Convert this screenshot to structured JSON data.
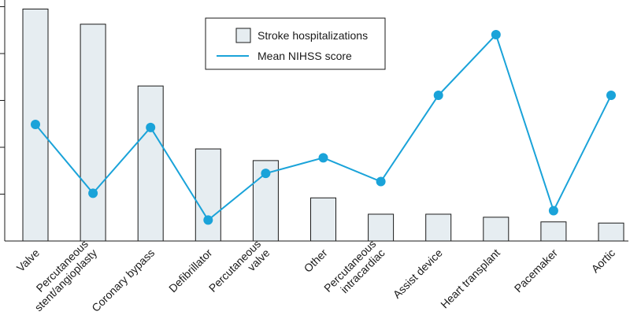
{
  "chart_data": {
    "type": "bar",
    "title": "",
    "xlabel": "",
    "ylabel": "",
    "ylim": [
      0,
      100
    ],
    "y2lim": [
      0,
      10
    ],
    "grid": false,
    "legend_position": "top-center",
    "categories": [
      [
        "Valve"
      ],
      [
        "Percutaneous",
        "stent/angioplasty"
      ],
      [
        "Coronary bypass"
      ],
      [
        "Defibrillator"
      ],
      [
        "Percutaneous",
        "valve"
      ],
      [
        "Other"
      ],
      [
        "Percutaneous",
        "intracardiac"
      ],
      [
        "Assist device"
      ],
      [
        "Heart transplant"
      ],
      [
        "Pacemaker"
      ],
      [
        "Aortic"
      ]
    ],
    "series": [
      {
        "name": "Stroke hospitalizations",
        "type": "bar",
        "axis": "left",
        "color": "#e6edf1",
        "stroke": "#1a1a1a",
        "values": [
          99.5,
          93,
          66.5,
          39.5,
          34.5,
          18.5,
          11.5,
          11.5,
          10.2,
          8.2,
          7.7
        ]
      },
      {
        "name": "Mean NIHSS score",
        "type": "line",
        "axis": "right",
        "color": "#1aa3d9",
        "values": [
          5.0,
          2.05,
          4.87,
          0.9,
          2.9,
          3.57,
          2.55,
          6.25,
          8.85,
          1.3,
          6.25
        ]
      }
    ]
  }
}
